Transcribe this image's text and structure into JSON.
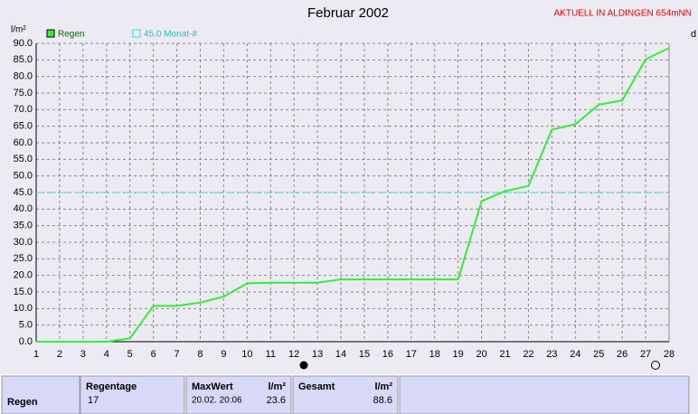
{
  "chart_data": {
    "type": "line",
    "title": "Februar 2002",
    "subtitle": "AKTUELL IN ALDINGEN 654mNN",
    "y_label": "l/m²",
    "x_label": "d",
    "x": [
      1,
      2,
      3,
      4,
      5,
      6,
      7,
      8,
      9,
      10,
      11,
      12,
      13,
      14,
      15,
      16,
      17,
      18,
      19,
      20,
      21,
      22,
      23,
      24,
      25,
      26,
      27,
      28
    ],
    "series": [
      {
        "name": "Regen",
        "color": "#33ee33",
        "values": [
          0,
          0,
          0,
          0,
          1,
          10.8,
          10.8,
          11.8,
          13.6,
          17.6,
          17.8,
          17.8,
          17.8,
          18.8,
          18.8,
          18.8,
          18.8,
          18.8,
          18.8,
          42.4,
          45.4,
          47,
          64,
          65.6,
          71.5,
          72.8,
          85.2,
          88.6
        ]
      }
    ],
    "reference": {
      "label": "45.0 Monat-#",
      "value": 45,
      "color": "#33dddd"
    },
    "xlim": [
      1,
      28
    ],
    "xticks": [
      1,
      2,
      3,
      4,
      5,
      6,
      7,
      8,
      9,
      10,
      11,
      12,
      13,
      14,
      15,
      16,
      17,
      18,
      19,
      20,
      21,
      22,
      23,
      24,
      25,
      26,
      27,
      28
    ],
    "ylim": [
      0,
      90
    ],
    "yticks": [
      {
        "value": 0,
        "label": "0.0"
      },
      {
        "value": 5,
        "label": "5.0"
      },
      {
        "value": 10,
        "label": "10.0"
      },
      {
        "value": 15,
        "label": "15.0"
      },
      {
        "value": 20,
        "label": "20.0"
      },
      {
        "value": 25,
        "label": "25.0"
      },
      {
        "value": 30,
        "label": "30.0"
      },
      {
        "value": 35,
        "label": "35.0"
      },
      {
        "value": 40,
        "label": "40.0"
      },
      {
        "value": 45,
        "label": "45.0"
      },
      {
        "value": 50,
        "label": "50.0"
      },
      {
        "value": 55,
        "label": "55.0"
      },
      {
        "value": 60,
        "label": "60.0"
      },
      {
        "value": 65,
        "label": "65.0"
      },
      {
        "value": 70,
        "label": "70.0"
      },
      {
        "value": 75,
        "label": "75.0"
      },
      {
        "value": 80,
        "label": "80.0"
      },
      {
        "value": 85,
        "label": "85.0"
      },
      {
        "value": 90,
        "label": "90.0"
      }
    ],
    "grid": true
  },
  "table": {
    "row_label": "Regen",
    "regentage": {
      "header": "Regentage",
      "value": "17"
    },
    "maxwert": {
      "header": "MaxWert",
      "unit": "l/m²",
      "date": "20.02.  20:06",
      "value": "23.6"
    },
    "gesamt": {
      "header": "Gesamt",
      "unit": "l/m²",
      "value": "88.6"
    }
  }
}
